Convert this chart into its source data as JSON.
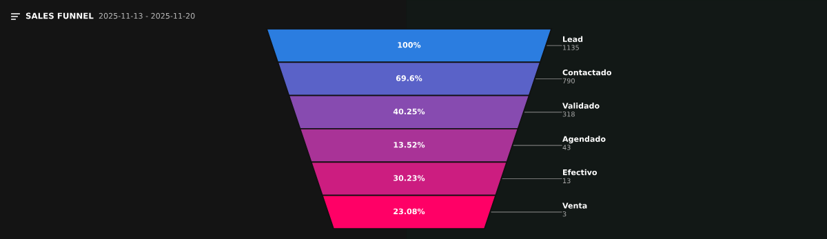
{
  "chart_data": {
    "type": "other",
    "title": "SALES FUNNEL",
    "subtitle": "2025-11-13 - 2025-11-20",
    "categories": [
      "Lead",
      "Contactado",
      "Validado",
      "Agendado",
      "Efectivo",
      "Venta"
    ],
    "values": [
      1135,
      790,
      318,
      43,
      13,
      3
    ],
    "data_labels": true,
    "annotations": [
      "100%",
      "69.6%",
      "40.25%",
      "13.52%",
      "30.23%",
      "23.08%"
    ],
    "colors": [
      "#2b7de0",
      "#5a62c8",
      "#874bb0",
      "#a93397",
      "#cc1d80",
      "#ff0066"
    ]
  }
}
